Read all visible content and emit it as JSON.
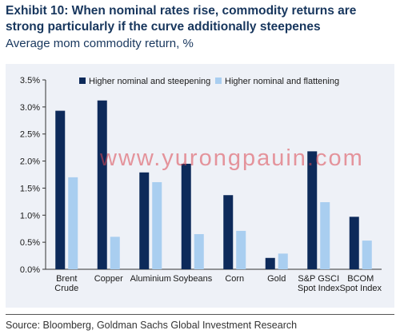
{
  "header": {
    "title": "Exhibit 10: When nominal rates rise, commodity returns are strong particularly if the curve additionally steepenes",
    "subtitle": "Average mom commodity return, %"
  },
  "footer": {
    "source": "Source: Bloomberg, Goldman Sachs Global Investment Research"
  },
  "watermark": "www.yurongpauin.com",
  "colors": {
    "steepening": "#0d2a5a",
    "flattening": "#a9cef0",
    "background": "#eef1f7"
  },
  "chart_data": {
    "type": "bar",
    "categories": [
      [
        "Brent",
        "Crude"
      ],
      [
        "Copper"
      ],
      [
        "Aluminium"
      ],
      [
        "Soybeans"
      ],
      [
        "Corn"
      ],
      [
        "Gold"
      ],
      [
        "S&P GSCI",
        "Spot Index"
      ],
      [
        "BCOM",
        "Spot Index"
      ]
    ],
    "series": [
      {
        "name": "Higher nominal and steepening",
        "values": [
          2.93,
          3.12,
          1.79,
          1.95,
          1.37,
          0.21,
          2.18,
          0.97
        ]
      },
      {
        "name": "Higher nominal and flattening",
        "values": [
          1.7,
          0.6,
          1.61,
          0.65,
          0.71,
          0.29,
          1.24,
          0.53
        ]
      }
    ],
    "ylim": [
      0,
      3.5
    ],
    "yticks": [
      0,
      0.5,
      1.0,
      1.5,
      2.0,
      2.5,
      3.0,
      3.5
    ],
    "ytick_labels": [
      "0.0%",
      "0.5%",
      "1.0%",
      "1.5%",
      "2.0%",
      "2.5%",
      "3.0%",
      "3.5%"
    ],
    "grid": false,
    "legend_position": "top"
  }
}
